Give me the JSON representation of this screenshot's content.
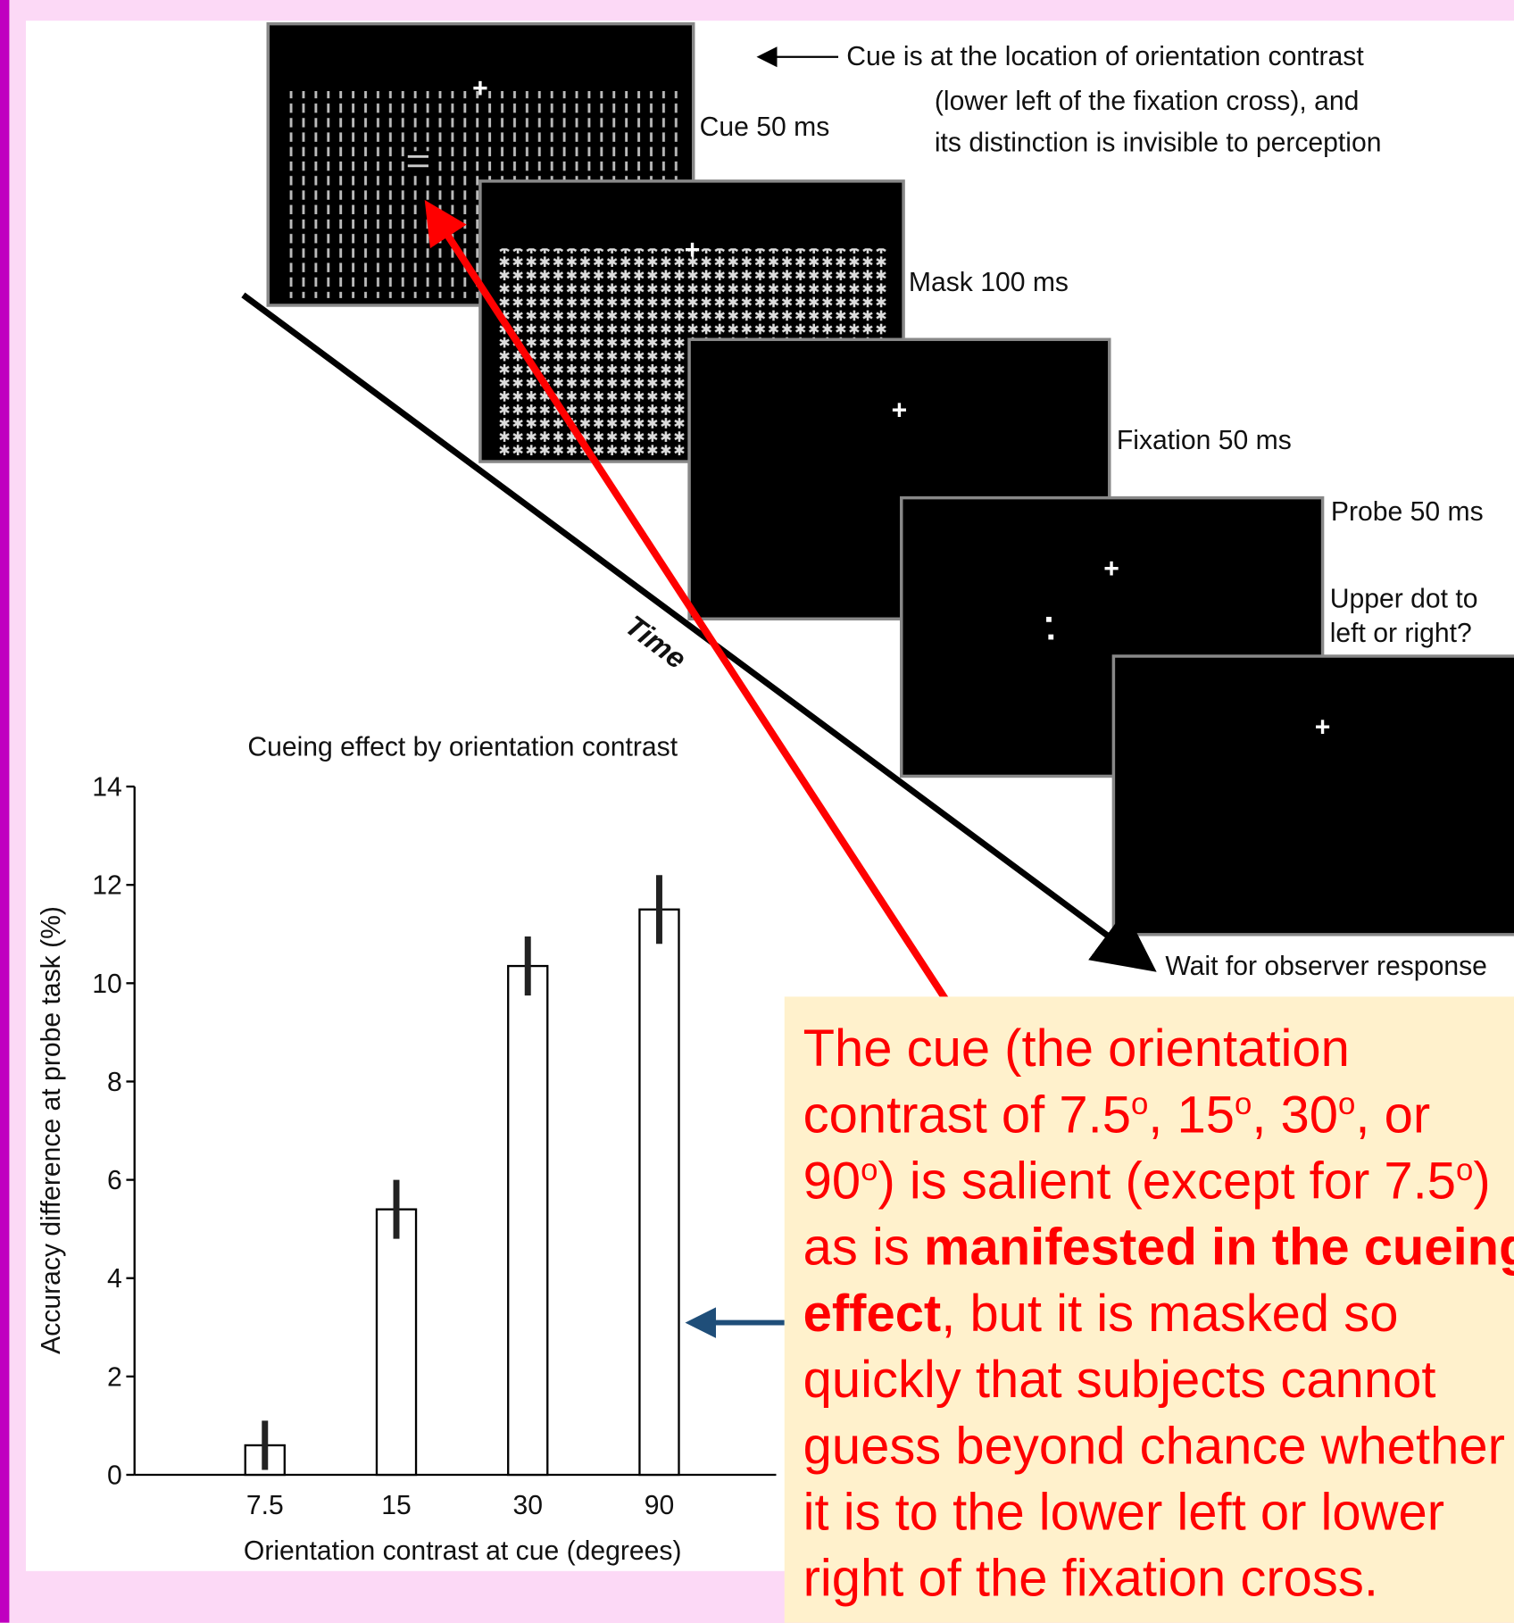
{
  "chart_data": {
    "type": "bar",
    "title": "Cueing effect by orientation contrast",
    "x_label": "Orientation contrast at cue (degrees)",
    "y_label": "Accuracy difference at probe task (%)",
    "categories": [
      "7.5",
      "15",
      "30",
      "90"
    ],
    "values": [
      0.6,
      5.4,
      10.35,
      11.5
    ],
    "errors": [
      0.5,
      0.6,
      0.6,
      0.7
    ],
    "color": "#ffffff",
    "ylim": [
      0,
      14
    ],
    "yticks": [
      0,
      2,
      4,
      6,
      8,
      10,
      12,
      14
    ],
    "grid": false
  },
  "diagram": {
    "cue_note": [
      "Cue is at the location of orientation contrast",
      "(lower left of the fixation cross), and",
      "its distinction is invisible to perception"
    ],
    "cue": "Cue 50 ms",
    "mask": "Mask 100  ms",
    "fixation": "Fixation 50  ms",
    "probe": "Probe 50 ms",
    "question": [
      "Upper dot to",
      "left or right?"
    ],
    "wait": "Wait for observer response",
    "time": "Time"
  },
  "callout": {
    "runs": [
      {
        "text": "The cue (the orientation contrast of 7.5"
      },
      {
        "text": "o",
        "sup": true
      },
      {
        "text": ", 15"
      },
      {
        "text": "o",
        "sup": true
      },
      {
        "text": ", 30"
      },
      {
        "text": "o",
        "sup": true
      },
      {
        "text": ", or 90"
      },
      {
        "text": "o",
        "sup": true
      },
      {
        "text": ") is salient (except for 7.5"
      },
      {
        "text": "o",
        "sup": true
      },
      {
        "text": ") as is "
      },
      {
        "text": "manifested in the cueing effect",
        "bold": true
      },
      {
        "text": ", but it is masked so quickly that subjects cannot guess beyond chance whether it is to the lower left or lower right of the fixation cross."
      }
    ]
  }
}
